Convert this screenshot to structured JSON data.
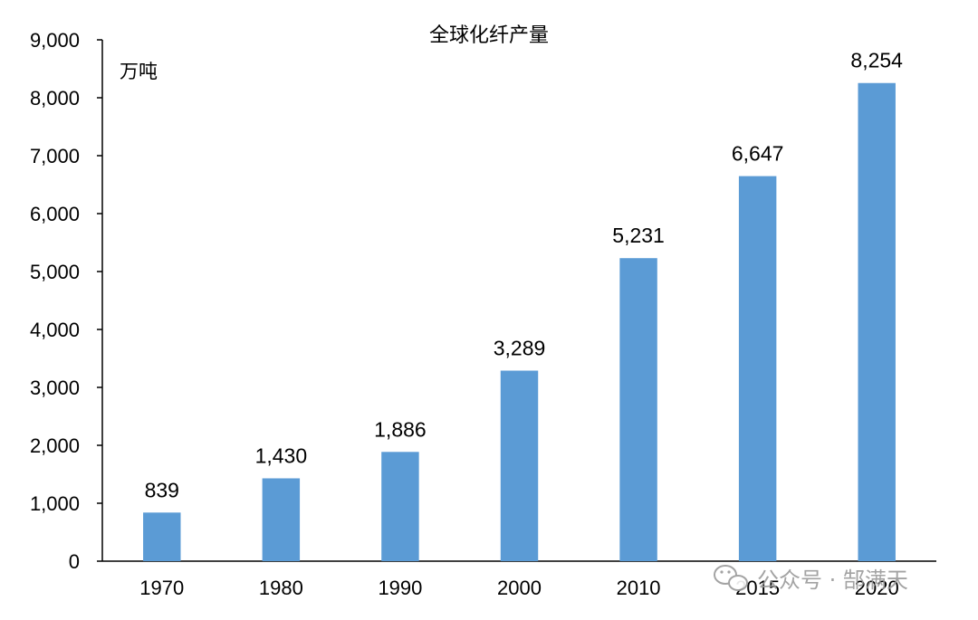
{
  "chart_data": {
    "type": "bar",
    "title": "全球化纤产量",
    "ylabel": "万吨",
    "xlabel": "",
    "categories": [
      "1970",
      "1980",
      "1990",
      "2000",
      "2010",
      "2015",
      "2020"
    ],
    "values": [
      839,
      1430,
      1886,
      3289,
      5231,
      6647,
      8254
    ],
    "data_labels": [
      "839",
      "1,430",
      "1,886",
      "3,289",
      "5,231",
      "6,647",
      "8,254"
    ],
    "ylim": [
      0,
      9000
    ],
    "yticks": [
      "0",
      "1,000",
      "2,000",
      "3,000",
      "4,000",
      "5,000",
      "6,000",
      "7,000",
      "8,000",
      "9,000"
    ],
    "bar_color": "#5b9bd5",
    "grid": false,
    "legend": "none"
  },
  "watermark": {
    "text": "公众号 · 郜满天",
    "icon": "wechat-icon"
  }
}
